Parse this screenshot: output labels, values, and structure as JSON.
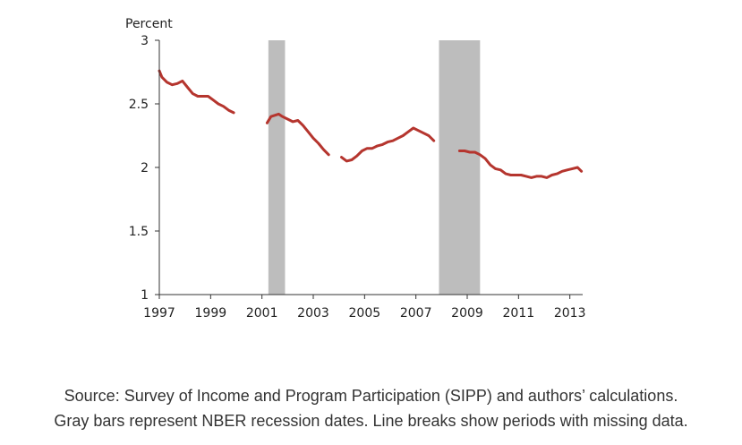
{
  "chart_data": {
    "type": "line",
    "title": "",
    "xlabel": "",
    "ylabel": "Percent",
    "xlim": [
      1997,
      2013.5
    ],
    "ylim": [
      1,
      3
    ],
    "x_ticks": [
      1997,
      1999,
      2001,
      2003,
      2005,
      2007,
      2009,
      2011,
      2013
    ],
    "x_tick_labels": [
      "1997",
      "1999",
      "2001",
      "2003",
      "2005",
      "2007",
      "2009",
      "2011",
      "2013"
    ],
    "y_ticks": [
      1,
      1.5,
      2,
      2.5,
      3
    ],
    "y_tick_labels": [
      "1",
      "1.5",
      "2",
      "2.5",
      "3"
    ],
    "grid": false,
    "line_color": "#b5352e",
    "recession_color": "#bdbdbd",
    "recessions": [
      {
        "start": 2001.25,
        "end": 2001.9
      },
      {
        "start": 2007.9,
        "end": 2009.5
      }
    ],
    "series": [
      {
        "segments": [
          {
            "x": [
              1997.0,
              1997.1,
              1997.3,
              1997.5,
              1997.7,
              1997.9,
              1998.1,
              1998.3,
              1998.5,
              1998.7,
              1998.9,
              1999.1,
              1999.3,
              1999.5,
              1999.7,
              1999.9
            ],
            "y": [
              2.76,
              2.71,
              2.67,
              2.65,
              2.66,
              2.68,
              2.63,
              2.58,
              2.56,
              2.56,
              2.56,
              2.53,
              2.5,
              2.48,
              2.45,
              2.43
            ]
          },
          {
            "x": [
              2001.2,
              2001.35,
              2001.5,
              2001.65,
              2001.8,
              2002.0,
              2002.2,
              2002.4,
              2002.6,
              2002.8,
              2003.0,
              2003.2,
              2003.4,
              2003.6
            ],
            "y": [
              2.35,
              2.4,
              2.41,
              2.42,
              2.4,
              2.38,
              2.36,
              2.37,
              2.33,
              2.28,
              2.23,
              2.19,
              2.14,
              2.1
            ]
          },
          {
            "x": [
              2004.1,
              2004.3,
              2004.5,
              2004.7,
              2004.9,
              2005.1,
              2005.3,
              2005.5,
              2005.7,
              2005.9,
              2006.1,
              2006.3,
              2006.5,
              2006.7,
              2006.9,
              2007.1,
              2007.3,
              2007.5,
              2007.7
            ],
            "y": [
              2.08,
              2.05,
              2.06,
              2.09,
              2.13,
              2.15,
              2.15,
              2.17,
              2.18,
              2.2,
              2.21,
              2.23,
              2.25,
              2.28,
              2.31,
              2.29,
              2.27,
              2.25,
              2.21
            ]
          },
          {
            "x": [
              2008.7,
              2008.9,
              2009.1,
              2009.3,
              2009.5,
              2009.7,
              2009.9,
              2010.1,
              2010.3,
              2010.5,
              2010.7,
              2010.9,
              2011.1,
              2011.3,
              2011.5,
              2011.7,
              2011.9,
              2012.1,
              2012.3,
              2012.5,
              2012.7,
              2012.9,
              2013.1,
              2013.3,
              2013.45
            ],
            "y": [
              2.13,
              2.13,
              2.12,
              2.12,
              2.1,
              2.07,
              2.02,
              1.99,
              1.98,
              1.95,
              1.94,
              1.94,
              1.94,
              1.93,
              1.92,
              1.93,
              1.93,
              1.92,
              1.94,
              1.95,
              1.97,
              1.98,
              1.99,
              2.0,
              1.97
            ]
          }
        ]
      }
    ]
  },
  "caption": {
    "line1": "Source: Survey of Income and Program Participation (SIPP) and authors’ calculations.",
    "line2": "Gray bars represent NBER recession dates. Line breaks show periods with missing data."
  }
}
